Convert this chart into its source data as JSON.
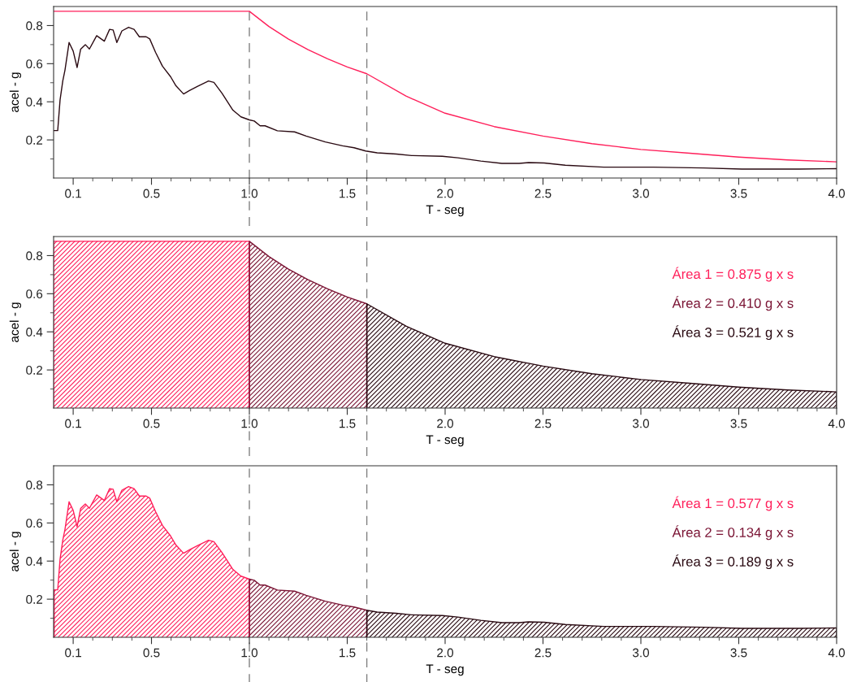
{
  "chart_data": [
    {
      "type": "line",
      "xlabel": "T - seg",
      "ylabel": "acel - g",
      "xlim": [
        0,
        4
      ],
      "ylim": [
        0,
        0.9
      ],
      "grid": false,
      "legend": false,
      "marker": "none",
      "xticks": [
        0.1,
        {
          "value": 0.2,
          "label": null
        },
        {
          "value": 0.3,
          "label": null
        },
        {
          "value": 0.4,
          "label": null
        },
        0.5,
        {
          "value": 0.6,
          "label": null
        },
        {
          "value": 0.7,
          "label": null
        },
        {
          "value": 0.8,
          "label": null
        },
        {
          "value": 0.9,
          "label": null
        },
        {
          "value": 1,
          "label": "1.0"
        },
        {
          "value": 1.1,
          "label": null
        },
        {
          "value": 1.2,
          "label": null
        },
        {
          "value": 1.3,
          "label": null
        },
        {
          "value": 1.4,
          "label": null
        },
        1.5,
        {
          "value": 1.6,
          "label": null
        },
        {
          "value": 1.7,
          "label": null
        },
        {
          "value": 1.8,
          "label": null
        },
        {
          "value": 1.9,
          "label": null
        },
        {
          "value": 2,
          "label": "2.0"
        },
        {
          "value": 2.1,
          "label": null
        },
        {
          "value": 2.2,
          "label": null
        },
        {
          "value": 2.3,
          "label": null
        },
        {
          "value": 2.4,
          "label": null
        },
        2.5,
        {
          "value": 2.6,
          "label": null
        },
        {
          "value": 2.7,
          "label": null
        },
        {
          "value": 2.8,
          "label": null
        },
        {
          "value": 2.9,
          "label": null
        },
        {
          "value": 3,
          "label": "3.0"
        },
        {
          "value": 3.1,
          "label": null
        },
        {
          "value": 3.2,
          "label": null
        },
        {
          "value": 3.3,
          "label": null
        },
        {
          "value": 3.4,
          "label": null
        },
        3.5,
        {
          "value": 3.6,
          "label": null
        },
        {
          "value": 3.7,
          "label": null
        },
        {
          "value": 3.8,
          "label": null
        },
        {
          "value": 3.9,
          "label": null
        },
        {
          "value": 4,
          "label": "4.0"
        }
      ],
      "yticks": [
        {
          "value": 0.1,
          "label": null
        },
        0.2,
        {
          "value": 0.3,
          "label": null
        },
        0.4,
        {
          "value": 0.5,
          "label": null
        },
        0.6,
        {
          "value": 0.7,
          "label": null
        },
        0.8
      ],
      "ref_lines": [
        {
          "axis": "x",
          "value": 1,
          "color": "#808080",
          "line_style": "dashed"
        },
        {
          "axis": "x",
          "value": 1.6,
          "color": "#808080",
          "line_style": "dashed"
        }
      ],
      "series": [
        {
          "color": "#ff1f5a",
          "x": [
            0,
            1,
            1.1,
            1.2,
            1.3,
            1.4,
            1.5,
            1.6,
            1.8,
            2.0,
            2.25,
            2.5,
            2.75,
            3.0,
            3.25,
            3.5,
            3.75,
            4.0
          ],
          "values": [
            0.875,
            0.875,
            0.795,
            0.729,
            0.673,
            0.625,
            0.583,
            0.547,
            0.43,
            0.34,
            0.27,
            0.22,
            0.18,
            0.15,
            0.13,
            0.11,
            0.095,
            0.085
          ]
        },
        {
          "color": "#2a0a12",
          "x": [
            0.003,
            0.021,
            0.033,
            0.047,
            0.058,
            0.079,
            0.1,
            0.12,
            0.138,
            0.162,
            0.183,
            0.22,
            0.259,
            0.286,
            0.304,
            0.323,
            0.349,
            0.383,
            0.411,
            0.438,
            0.473,
            0.491,
            0.521,
            0.556,
            0.598,
            0.625,
            0.664,
            0.694,
            0.736,
            0.791,
            0.819,
            0.86,
            0.916,
            0.957,
            1.0,
            1.025,
            1.055,
            1.08,
            1.143,
            1.231,
            1.29,
            1.388,
            1.476,
            1.535,
            1.594,
            1.653,
            1.751,
            1.829,
            1.986,
            2.065,
            2.182,
            2.29,
            2.378,
            2.427,
            2.506,
            2.614,
            2.81,
            3.065,
            3.32,
            3.516,
            3.81,
            4.0
          ],
          "values": [
            0.249,
            0.249,
            0.41,
            0.51,
            0.566,
            0.711,
            0.666,
            0.58,
            0.676,
            0.7,
            0.677,
            0.747,
            0.718,
            0.78,
            0.777,
            0.711,
            0.772,
            0.791,
            0.78,
            0.741,
            0.741,
            0.73,
            0.659,
            0.587,
            0.531,
            0.484,
            0.441,
            0.459,
            0.481,
            0.509,
            0.502,
            0.445,
            0.356,
            0.321,
            0.305,
            0.299,
            0.274,
            0.274,
            0.248,
            0.242,
            0.22,
            0.189,
            0.169,
            0.159,
            0.142,
            0.132,
            0.126,
            0.118,
            0.114,
            0.106,
            0.089,
            0.077,
            0.077,
            0.081,
            0.079,
            0.067,
            0.057,
            0.057,
            0.053,
            0.047,
            0.047,
            0.049
          ]
        }
      ]
    },
    {
      "type": "area",
      "xlabel": "T - seg",
      "ylabel": "acel - g",
      "xlim": [
        0,
        4
      ],
      "ylim": [
        0,
        0.9
      ],
      "grid": false,
      "legend": false,
      "xticks": [
        0.1,
        {
          "value": 0.2,
          "label": null
        },
        {
          "value": 0.3,
          "label": null
        },
        {
          "value": 0.4,
          "label": null
        },
        0.5,
        {
          "value": 0.6,
          "label": null
        },
        {
          "value": 0.7,
          "label": null
        },
        {
          "value": 0.8,
          "label": null
        },
        {
          "value": 0.9,
          "label": null
        },
        {
          "value": 1,
          "label": "1.0"
        },
        {
          "value": 1.1,
          "label": null
        },
        {
          "value": 1.2,
          "label": null
        },
        {
          "value": 1.3,
          "label": null
        },
        {
          "value": 1.4,
          "label": null
        },
        1.5,
        {
          "value": 1.6,
          "label": null
        },
        {
          "value": 1.7,
          "label": null
        },
        {
          "value": 1.8,
          "label": null
        },
        {
          "value": 1.9,
          "label": null
        },
        {
          "value": 2,
          "label": "2.0"
        },
        {
          "value": 2.1,
          "label": null
        },
        {
          "value": 2.2,
          "label": null
        },
        {
          "value": 2.3,
          "label": null
        },
        {
          "value": 2.4,
          "label": null
        },
        2.5,
        {
          "value": 2.6,
          "label": null
        },
        {
          "value": 2.7,
          "label": null
        },
        {
          "value": 2.8,
          "label": null
        },
        {
          "value": 2.9,
          "label": null
        },
        {
          "value": 3,
          "label": "3.0"
        },
        {
          "value": 3.1,
          "label": null
        },
        {
          "value": 3.2,
          "label": null
        },
        {
          "value": 3.3,
          "label": null
        },
        {
          "value": 3.4,
          "label": null
        },
        3.5,
        {
          "value": 3.6,
          "label": null
        },
        {
          "value": 3.7,
          "label": null
        },
        {
          "value": 3.8,
          "label": null
        },
        {
          "value": 3.9,
          "label": null
        },
        {
          "value": 4,
          "label": "4.0"
        }
      ],
      "yticks": [
        {
          "value": 0.1,
          "label": null
        },
        0.2,
        {
          "value": 0.3,
          "label": null
        },
        0.4,
        {
          "value": 0.5,
          "label": null
        },
        0.6,
        {
          "value": 0.7,
          "label": null
        },
        0.8
      ],
      "ref_lines": [
        {
          "axis": "x",
          "value": 1,
          "color": "#808080",
          "line_style": "dashed"
        },
        {
          "axis": "x",
          "value": 1.6,
          "color": "#808080",
          "line_style": "dashed"
        }
      ],
      "annotations": [
        "Área 1 = 0.875 g x s",
        "Área 2 = 0.410 g x s",
        "Área 3 = 0.521 g x s"
      ],
      "series": [
        {
          "color": "#ff1f5a",
          "x": [
            0,
            1
          ],
          "values": [
            0.875,
            0.875
          ]
        },
        {
          "color": "#7b1535",
          "x": [
            1,
            1.1,
            1.2,
            1.3,
            1.4,
            1.5,
            1.6
          ],
          "values": [
            0.875,
            0.795,
            0.729,
            0.673,
            0.625,
            0.583,
            0.547
          ]
        },
        {
          "color": "#2a0a12",
          "x": [
            1.6,
            1.8,
            2.0,
            2.25,
            2.5,
            2.75,
            3.0,
            3.25,
            3.5,
            3.75,
            4.0
          ],
          "values": [
            0.547,
            0.43,
            0.34,
            0.27,
            0.22,
            0.18,
            0.15,
            0.13,
            0.11,
            0.095,
            0.085
          ]
        }
      ]
    },
    {
      "type": "area",
      "xlabel": "T - seg",
      "ylabel": "acel - g",
      "xlim": [
        0,
        4
      ],
      "ylim": [
        0,
        0.9
      ],
      "grid": false,
      "legend": false,
      "xticks": [
        0.1,
        {
          "value": 0.2,
          "label": null
        },
        {
          "value": 0.3,
          "label": null
        },
        {
          "value": 0.4,
          "label": null
        },
        0.5,
        {
          "value": 0.6,
          "label": null
        },
        {
          "value": 0.7,
          "label": null
        },
        {
          "value": 0.8,
          "label": null
        },
        {
          "value": 0.9,
          "label": null
        },
        {
          "value": 1,
          "label": "1.0"
        },
        {
          "value": 1.1,
          "label": null
        },
        {
          "value": 1.2,
          "label": null
        },
        {
          "value": 1.3,
          "label": null
        },
        {
          "value": 1.4,
          "label": null
        },
        1.5,
        {
          "value": 1.6,
          "label": null
        },
        {
          "value": 1.7,
          "label": null
        },
        {
          "value": 1.8,
          "label": null
        },
        {
          "value": 1.9,
          "label": null
        },
        {
          "value": 2,
          "label": "2.0"
        },
        {
          "value": 2.1,
          "label": null
        },
        {
          "value": 2.2,
          "label": null
        },
        {
          "value": 2.3,
          "label": null
        },
        {
          "value": 2.4,
          "label": null
        },
        2.5,
        {
          "value": 2.6,
          "label": null
        },
        {
          "value": 2.7,
          "label": null
        },
        {
          "value": 2.8,
          "label": null
        },
        {
          "value": 2.9,
          "label": null
        },
        {
          "value": 3,
          "label": "3.0"
        },
        {
          "value": 3.1,
          "label": null
        },
        {
          "value": 3.2,
          "label": null
        },
        {
          "value": 3.3,
          "label": null
        },
        {
          "value": 3.4,
          "label": null
        },
        3.5,
        {
          "value": 3.6,
          "label": null
        },
        {
          "value": 3.7,
          "label": null
        },
        {
          "value": 3.8,
          "label": null
        },
        {
          "value": 3.9,
          "label": null
        },
        {
          "value": 4,
          "label": "4.0"
        }
      ],
      "yticks": [
        {
          "value": 0.1,
          "label": null
        },
        0.2,
        {
          "value": 0.3,
          "label": null
        },
        0.4,
        {
          "value": 0.5,
          "label": null
        },
        0.6,
        {
          "value": 0.7,
          "label": null
        },
        0.8
      ],
      "ref_lines": [
        {
          "axis": "x",
          "value": 1,
          "color": "#808080",
          "line_style": "dashed"
        },
        {
          "axis": "x",
          "value": 1.6,
          "color": "#808080",
          "line_style": "dashed"
        }
      ],
      "annotations": [
        "Área 1 = 0.577 g x s",
        "Área 2 = 0.134 g x s",
        "Área 3 = 0.189 g x s"
      ],
      "series": [
        {
          "color": "#ff1f5a",
          "x": [
            0.003,
            0.021,
            0.033,
            0.047,
            0.058,
            0.079,
            0.1,
            0.12,
            0.138,
            0.162,
            0.183,
            0.22,
            0.259,
            0.286,
            0.304,
            0.323,
            0.349,
            0.383,
            0.411,
            0.438,
            0.473,
            0.491,
            0.521,
            0.556,
            0.598,
            0.625,
            0.664,
            0.694,
            0.736,
            0.791,
            0.819,
            0.86,
            0.916,
            0.957,
            1.0
          ],
          "values": [
            0.249,
            0.249,
            0.41,
            0.51,
            0.566,
            0.711,
            0.666,
            0.58,
            0.676,
            0.7,
            0.677,
            0.747,
            0.718,
            0.78,
            0.777,
            0.711,
            0.772,
            0.791,
            0.78,
            0.741,
            0.741,
            0.73,
            0.659,
            0.587,
            0.531,
            0.484,
            0.441,
            0.459,
            0.481,
            0.509,
            0.502,
            0.445,
            0.356,
            0.321,
            0.305
          ]
        },
        {
          "color": "#7b1535",
          "x": [
            1.0,
            1.025,
            1.055,
            1.08,
            1.143,
            1.231,
            1.29,
            1.388,
            1.476,
            1.535,
            1.6
          ],
          "values": [
            0.305,
            0.299,
            0.274,
            0.274,
            0.248,
            0.242,
            0.22,
            0.189,
            0.169,
            0.159,
            0.142
          ]
        },
        {
          "color": "#2a0a12",
          "x": [
            1.6,
            1.653,
            1.751,
            1.829,
            1.986,
            2.065,
            2.182,
            2.29,
            2.378,
            2.427,
            2.506,
            2.614,
            2.81,
            3.065,
            3.32,
            3.516,
            3.81,
            4.0
          ],
          "values": [
            0.142,
            0.132,
            0.126,
            0.118,
            0.114,
            0.106,
            0.089,
            0.077,
            0.077,
            0.081,
            0.079,
            0.067,
            0.057,
            0.057,
            0.053,
            0.047,
            0.047,
            0.049
          ]
        }
      ]
    }
  ]
}
